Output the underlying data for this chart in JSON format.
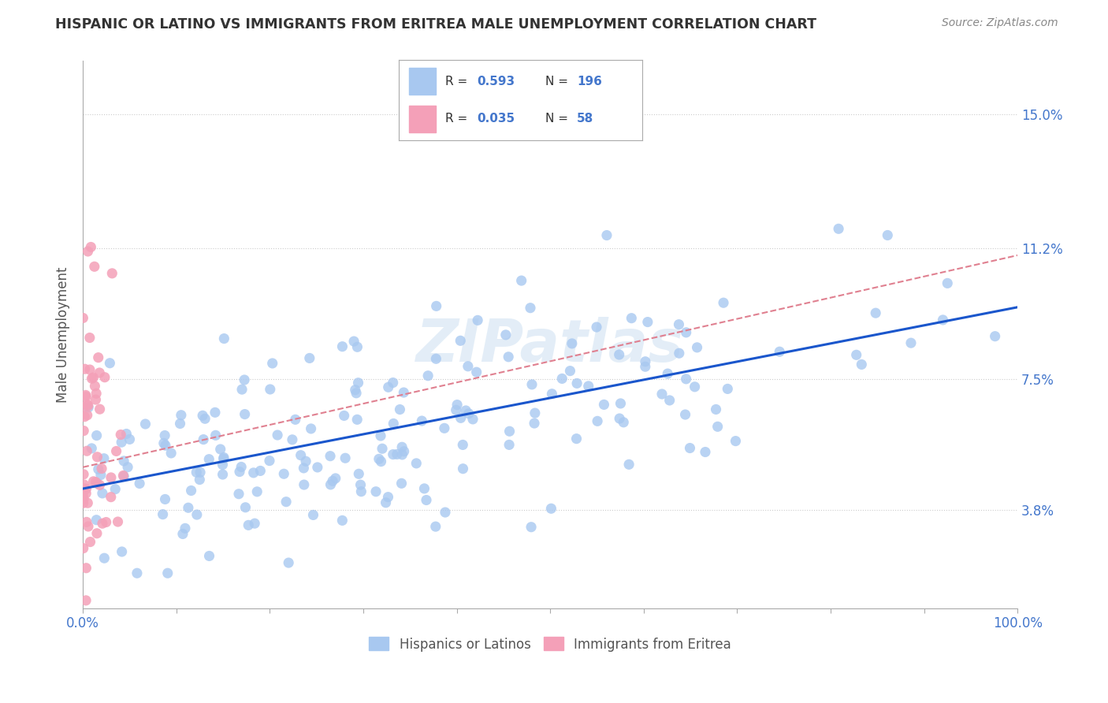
{
  "title": "HISPANIC OR LATINO VS IMMIGRANTS FROM ERITREA MALE UNEMPLOYMENT CORRELATION CHART",
  "source": "Source: ZipAtlas.com",
  "ylabel": "Male Unemployment",
  "watermark": "ZIPatlas",
  "series": [
    {
      "label": "Hispanics or Latinos",
      "R": 0.593,
      "N": 196,
      "color": "#a8c8f0",
      "line_color": "#1a56cc",
      "line_style": "solid"
    },
    {
      "label": "Immigrants from Eritrea",
      "R": 0.035,
      "N": 58,
      "color": "#f4a0b8",
      "line_color": "#e08090",
      "line_style": "dashed"
    }
  ],
  "xlim": [
    0,
    100
  ],
  "ylim": [
    1.0,
    16.5
  ],
  "yticks": [
    3.8,
    7.5,
    11.2,
    15.0
  ],
  "xticks": [
    0,
    100
  ],
  "xtick_labels": [
    "0.0%",
    "100.0%"
  ],
  "ytick_labels": [
    "3.8%",
    "7.5%",
    "11.2%",
    "15.0%"
  ],
  "background_color": "#ffffff",
  "grid_color": "#cccccc",
  "title_color": "#333333",
  "axis_label_color": "#4477cc",
  "legend_box_color": "#4477cc"
}
